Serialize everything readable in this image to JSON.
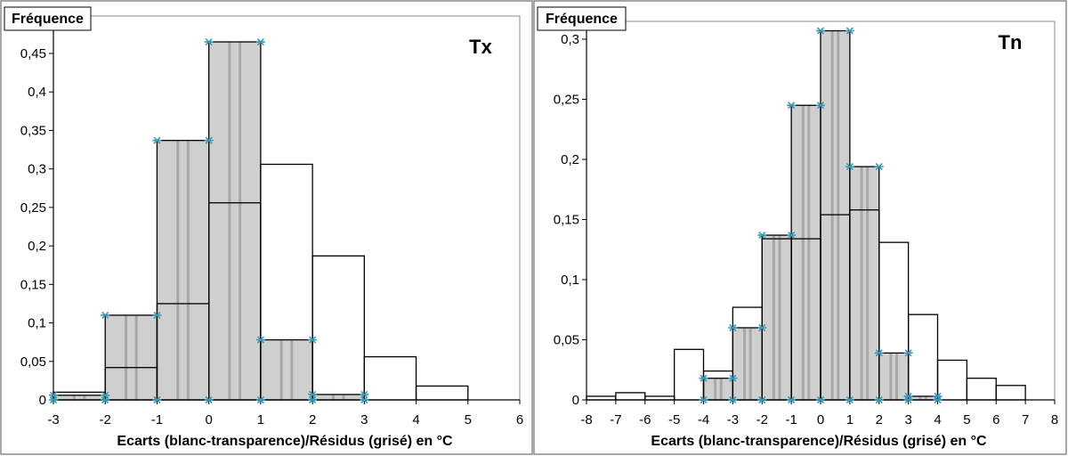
{
  "colors": {
    "shaded_fill": "#cfcfcf",
    "stripe": "#a8a8a8",
    "marker": "#3a9ab8",
    "axis": "#000000",
    "frame": "#8a8a8a"
  },
  "chart_data": [
    {
      "type": "bar",
      "panel_label": "Tx",
      "ylabel": "Fréquence",
      "xlabel": "Ecarts (blanc-transparence)/Résidus (grisé) en °C",
      "xlim": [
        -3,
        6
      ],
      "ylim": [
        0,
        0.5
      ],
      "xticks": [
        -3,
        -2,
        -1,
        0,
        1,
        2,
        3,
        4,
        5,
        6
      ],
      "xtick_labels": [
        "-3",
        "-2",
        "-1",
        "0",
        "1",
        "2",
        "3",
        "4",
        "5",
        "6"
      ],
      "yticks": [
        0,
        0.05,
        0.1,
        0.15,
        0.2,
        0.25,
        0.3,
        0.35,
        0.4,
        0.45
      ],
      "ytick_labels": [
        "0",
        "0,05",
        "0,1",
        "0,15",
        "0,2",
        "0,25",
        "0,3",
        "0,35",
        "0,4",
        "0,45"
      ],
      "series": [
        {
          "name": "Ecarts (blanc-transparence)",
          "bins": [
            [
              -3,
              -2
            ],
            [
              -2,
              -1
            ],
            [
              -1,
              0
            ],
            [
              0,
              1
            ],
            [
              1,
              2
            ],
            [
              2,
              3
            ],
            [
              3,
              4
            ],
            [
              4,
              5
            ]
          ],
          "values": [
            0.01,
            0.042,
            0.125,
            0.256,
            0.306,
            0.187,
            0.056,
            0.018
          ]
        },
        {
          "name": "Résidus (grisé)",
          "bins": [
            [
              -3,
              -2
            ],
            [
              -2,
              -1
            ],
            [
              -1,
              0
            ],
            [
              0,
              1
            ],
            [
              1,
              2
            ],
            [
              2,
              3
            ]
          ],
          "values": [
            0.006,
            0.11,
            0.337,
            0.465,
            0.078,
            0.007
          ]
        }
      ]
    },
    {
      "type": "bar",
      "panel_label": "Tn",
      "ylabel": "Fréquence",
      "xlabel": "Ecarts (blanc-transparence)/Résidus (grisé) en °C",
      "xlim": [
        -8,
        8
      ],
      "ylim": [
        0,
        0.32
      ],
      "xticks": [
        -8,
        -7,
        -6,
        -5,
        -4,
        -3,
        -2,
        -1,
        0,
        1,
        2,
        3,
        4,
        5,
        6,
        7,
        8
      ],
      "xtick_labels": [
        "-8",
        "-7",
        "-6",
        "-5",
        "-4",
        "-3",
        "-2",
        "-1",
        "0",
        "1",
        "2",
        "3",
        "4",
        "5",
        "6",
        "7",
        "8"
      ],
      "yticks": [
        0,
        0.05,
        0.1,
        0.15,
        0.2,
        0.25,
        0.3
      ],
      "ytick_labels": [
        "0",
        "0,05",
        "0,1",
        "0,15",
        "0,2",
        "0,25",
        "0,3"
      ],
      "series": [
        {
          "name": "Ecarts (blanc-transparence)",
          "bins": [
            [
              -8,
              -7
            ],
            [
              -7,
              -6
            ],
            [
              -6,
              -5
            ],
            [
              -5,
              -4
            ],
            [
              -4,
              -3
            ],
            [
              -3,
              -2
            ],
            [
              -2,
              -1
            ],
            [
              -1,
              0
            ],
            [
              0,
              1
            ],
            [
              1,
              2
            ],
            [
              2,
              3
            ],
            [
              3,
              4
            ],
            [
              4,
              5
            ],
            [
              5,
              6
            ],
            [
              6,
              7
            ]
          ],
          "values": [
            0.003,
            0.006,
            0.003,
            0.042,
            0.024,
            0.077,
            0.134,
            0.134,
            0.154,
            0.158,
            0.131,
            0.071,
            0.033,
            0.018,
            0.012
          ]
        },
        {
          "name": "Résidus (grisé)",
          "bins": [
            [
              -4,
              -3
            ],
            [
              -3,
              -2
            ],
            [
              -2,
              -1
            ],
            [
              -1,
              0
            ],
            [
              0,
              1
            ],
            [
              1,
              2
            ],
            [
              2,
              3
            ],
            [
              3,
              4
            ]
          ],
          "values": [
            0.018,
            0.06,
            0.137,
            0.245,
            0.307,
            0.194,
            0.039,
            0.003
          ]
        }
      ]
    }
  ]
}
